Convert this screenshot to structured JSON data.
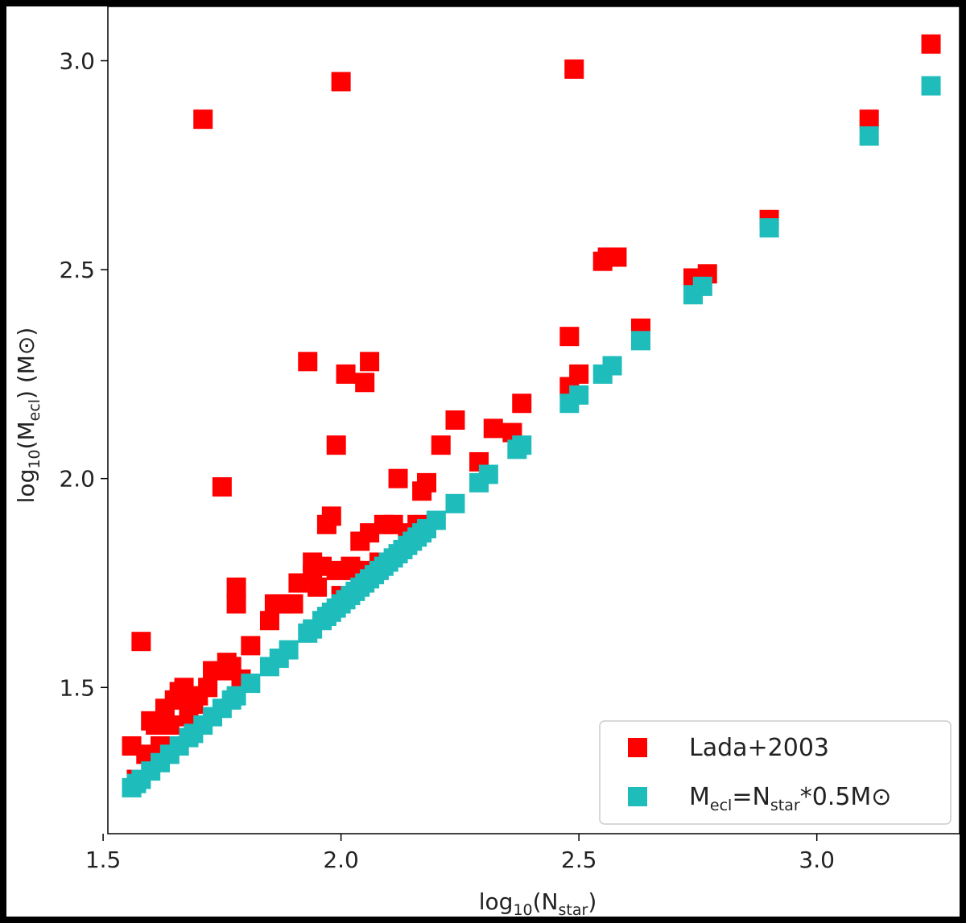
{
  "chart_data": {
    "type": "scatter",
    "title": "",
    "xlabel": {
      "base": "log",
      "sub1": "10",
      "mid": "(N",
      "sub2": "star",
      "end": ")"
    },
    "ylabel": {
      "base": "log",
      "sub1": "10",
      "mid": "(M",
      "sub2": "ecl",
      "end": ") (M",
      "sym": "⊙",
      "close": ")"
    },
    "xlim": [
      1.51,
      3.3
    ],
    "ylim": [
      1.15,
      3.13
    ],
    "xticks": [
      1.5,
      2.0,
      2.5,
      3.0
    ],
    "yticks": [
      1.5,
      2.0,
      2.5,
      3.0
    ],
    "xtick_labels": [
      "1.5",
      "2.0",
      "2.5",
      "3.0"
    ],
    "ytick_labels": [
      "1.5",
      "2.0",
      "2.5",
      "3.0"
    ],
    "grid": false,
    "legend_position": "bottom-right",
    "series": [
      {
        "name": "Lada+2003",
        "color": "#ff0000",
        "marker": "square",
        "points": [
          [
            1.56,
            1.36
          ],
          [
            1.57,
            1.28
          ],
          [
            1.58,
            1.61
          ],
          [
            1.59,
            1.34
          ],
          [
            1.6,
            1.42
          ],
          [
            1.61,
            1.41
          ],
          [
            1.62,
            1.36
          ],
          [
            1.63,
            1.45
          ],
          [
            1.64,
            1.41
          ],
          [
            1.65,
            1.47
          ],
          [
            1.66,
            1.49
          ],
          [
            1.67,
            1.5
          ],
          [
            1.68,
            1.43
          ],
          [
            1.69,
            1.46
          ],
          [
            1.7,
            1.48
          ],
          [
            1.71,
            2.86
          ],
          [
            1.72,
            1.5
          ],
          [
            1.73,
            1.54
          ],
          [
            1.75,
            1.54
          ],
          [
            1.75,
            1.98
          ],
          [
            1.76,
            1.56
          ],
          [
            1.77,
            1.55
          ],
          [
            1.78,
            1.74
          ],
          [
            1.78,
            1.7
          ],
          [
            1.79,
            1.52
          ],
          [
            1.81,
            1.6
          ],
          [
            1.85,
            1.66
          ],
          [
            1.86,
            1.7
          ],
          [
            1.88,
            1.7
          ],
          [
            1.9,
            1.7
          ],
          [
            1.91,
            1.75
          ],
          [
            1.93,
            2.28
          ],
          [
            1.94,
            1.8
          ],
          [
            1.94,
            1.77
          ],
          [
            1.95,
            1.74
          ],
          [
            1.96,
            1.79
          ],
          [
            1.97,
            1.89
          ],
          [
            1.98,
            1.91
          ],
          [
            1.99,
            1.78
          ],
          [
            1.99,
            2.08
          ],
          [
            2.0,
            1.72
          ],
          [
            2.0,
            2.95
          ],
          [
            2.01,
            2.25
          ],
          [
            2.02,
            1.79
          ],
          [
            2.03,
            1.78
          ],
          [
            2.04,
            1.85
          ],
          [
            2.05,
            1.78
          ],
          [
            2.05,
            2.23
          ],
          [
            2.06,
            1.87
          ],
          [
            2.06,
            2.28
          ],
          [
            2.08,
            1.8
          ],
          [
            2.09,
            1.89
          ],
          [
            2.11,
            1.89
          ],
          [
            2.12,
            2.0
          ],
          [
            2.14,
            1.87
          ],
          [
            2.16,
            1.89
          ],
          [
            2.17,
            1.97
          ],
          [
            2.18,
            1.99
          ],
          [
            2.21,
            2.08
          ],
          [
            2.24,
            2.14
          ],
          [
            2.29,
            2.04
          ],
          [
            2.32,
            2.12
          ],
          [
            2.36,
            2.11
          ],
          [
            2.38,
            2.18
          ],
          [
            2.48,
            2.34
          ],
          [
            2.48,
            2.22
          ],
          [
            2.49,
            2.98
          ],
          [
            2.5,
            2.25
          ],
          [
            2.55,
            2.52
          ],
          [
            2.56,
            2.53
          ],
          [
            2.58,
            2.53
          ],
          [
            2.63,
            2.36
          ],
          [
            2.74,
            2.48
          ],
          [
            2.77,
            2.49
          ],
          [
            2.9,
            2.62
          ],
          [
            3.11,
            2.86
          ],
          [
            3.24,
            3.04
          ]
        ]
      },
      {
        "name_html": {
          "pre": "M",
          "sub1": "ecl",
          "mid": "=N",
          "sub2": "star",
          "post": "*0.5M",
          "sym": "⊙"
        },
        "color": "#1fbcbc",
        "marker": "square",
        "points": [
          [
            1.56,
            1.26
          ],
          [
            1.57,
            1.27
          ],
          [
            1.58,
            1.28
          ],
          [
            1.6,
            1.3
          ],
          [
            1.62,
            1.32
          ],
          [
            1.64,
            1.34
          ],
          [
            1.66,
            1.36
          ],
          [
            1.68,
            1.38
          ],
          [
            1.69,
            1.39
          ],
          [
            1.71,
            1.41
          ],
          [
            1.73,
            1.43
          ],
          [
            1.75,
            1.45
          ],
          [
            1.77,
            1.47
          ],
          [
            1.78,
            1.48
          ],
          [
            1.81,
            1.51
          ],
          [
            1.85,
            1.55
          ],
          [
            1.87,
            1.57
          ],
          [
            1.89,
            1.59
          ],
          [
            1.93,
            1.63
          ],
          [
            1.94,
            1.64
          ],
          [
            1.96,
            1.66
          ],
          [
            1.97,
            1.67
          ],
          [
            1.98,
            1.68
          ],
          [
            1.99,
            1.69
          ],
          [
            2.0,
            1.7
          ],
          [
            2.01,
            1.71
          ],
          [
            2.02,
            1.72
          ],
          [
            2.03,
            1.73
          ],
          [
            2.04,
            1.74
          ],
          [
            2.05,
            1.75
          ],
          [
            2.06,
            1.76
          ],
          [
            2.07,
            1.77
          ],
          [
            2.08,
            1.78
          ],
          [
            2.09,
            1.79
          ],
          [
            2.1,
            1.8
          ],
          [
            2.11,
            1.81
          ],
          [
            2.12,
            1.82
          ],
          [
            2.13,
            1.83
          ],
          [
            2.14,
            1.84
          ],
          [
            2.15,
            1.85
          ],
          [
            2.16,
            1.86
          ],
          [
            2.17,
            1.87
          ],
          [
            2.18,
            1.88
          ],
          [
            2.2,
            1.9
          ],
          [
            2.24,
            1.94
          ],
          [
            2.29,
            1.99
          ],
          [
            2.31,
            2.01
          ],
          [
            2.37,
            2.07
          ],
          [
            2.38,
            2.08
          ],
          [
            2.48,
            2.18
          ],
          [
            2.5,
            2.2
          ],
          [
            2.55,
            2.25
          ],
          [
            2.57,
            2.27
          ],
          [
            2.63,
            2.33
          ],
          [
            2.74,
            2.44
          ],
          [
            2.76,
            2.46
          ],
          [
            2.9,
            2.6
          ],
          [
            3.11,
            2.82
          ],
          [
            3.24,
            2.94
          ]
        ]
      }
    ]
  }
}
